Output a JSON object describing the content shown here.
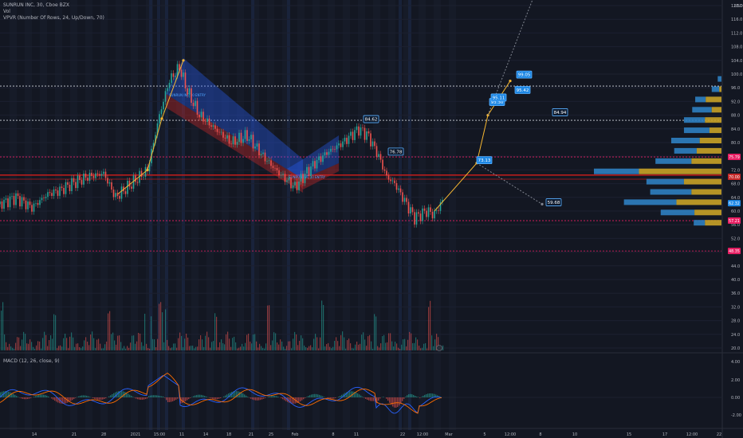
{
  "legend": {
    "symbol": "SUNRUN INC, 30, Cboe BZX",
    "volume": "Vol",
    "vpvr": "VPVR (Number Of Rows, 24, Up/Down, 70)",
    "macd": "MACD (12, 26, close, 9)"
  },
  "colors": {
    "background": "#131722",
    "up": "#26a69a",
    "down": "#ef5350",
    "arrow": "#f7b731",
    "channel_blue": "#2962ff",
    "channel_red": "#c62828",
    "vp_up": "#2f7fc1",
    "vp_down": "#c9a227",
    "magenta": "#e91e63",
    "macd_line": "#2962ff",
    "signal_line": "#ff6d00"
  },
  "chart_data": {
    "type": "candlestick",
    "price_axis": {
      "ticks": [
        "120.0",
        "116.0",
        "112.0",
        "108.0",
        "104.0",
        "100.0",
        "96.0",
        "92.0",
        "88.0",
        "84.0",
        "80.0",
        "76.0",
        "72.0",
        "68.0",
        "64.0",
        "60.0",
        "56.0",
        "52.0",
        "48.0",
        "44.0",
        "40.0",
        "36.0",
        "32.0",
        "28.0",
        "24.0",
        "20.0"
      ],
      "top_label": "USD",
      "range": [
        20,
        121
      ]
    },
    "macd_axis": {
      "ticks": [
        "4.00",
        "2.00",
        "0.00",
        "-2.00"
      ]
    },
    "x_labels": [
      "14",
      "21",
      "28",
      "2021",
      "15:00",
      "11",
      "14",
      "18",
      "21",
      "25",
      "Feb",
      "8",
      "11",
      "22",
      "12:00",
      "Mar",
      "5",
      "12:00",
      "8",
      "10",
      "15",
      "17",
      "12:00",
      "22"
    ],
    "price_labels": [
      {
        "text": "84.62",
        "price": 86.5
      },
      {
        "text": "76.78",
        "price": 77.0
      },
      {
        "text": "84.94",
        "price": 88.5
      },
      {
        "text": "59.68",
        "price": 62.2
      },
      {
        "text": "73.13",
        "price": 74.5
      },
      {
        "text": "93.30",
        "price": 91.5
      },
      {
        "text": "99.05",
        "price": 99.5
      },
      {
        "text": "95.42",
        "price": 95.0
      },
      {
        "text": "95.11",
        "price": 92.8
      }
    ],
    "axis_badges": [
      {
        "text": "75.79",
        "price": 75.8,
        "style": "magenta"
      },
      {
        "text": "70.00",
        "price": 70.0,
        "style": "red"
      },
      {
        "text": "57.21",
        "price": 57.2,
        "style": "magenta"
      },
      {
        "text": "48.35",
        "price": 48.35,
        "style": "magenta"
      },
      {
        "text": "62.32",
        "price": 62.3,
        "style": "blue"
      }
    ],
    "channel_labels": [
      "SUNRUN INC 30 ENTRY",
      "SUNRUN INC 30 ENTRY"
    ],
    "volume_profile": [
      {
        "price": 98,
        "up": 5,
        "down": 0
      },
      {
        "price": 95,
        "up": 10,
        "down": 3
      },
      {
        "price": 92,
        "up": 14,
        "down": 21
      },
      {
        "price": 89,
        "up": 26,
        "down": 13
      },
      {
        "price": 86,
        "up": 28,
        "down": 22
      },
      {
        "price": 83,
        "up": 34,
        "down": 16
      },
      {
        "price": 80,
        "up": 38,
        "down": 29
      },
      {
        "price": 77,
        "up": 30,
        "down": 33
      },
      {
        "price": 74,
        "up": 48,
        "down": 40
      },
      {
        "price": 71,
        "up": 60,
        "down": 110
      },
      {
        "price": 68,
        "up": 50,
        "down": 50
      },
      {
        "price": 65,
        "up": 55,
        "down": 40
      },
      {
        "price": 62,
        "up": 70,
        "down": 60
      },
      {
        "price": 59,
        "up": 45,
        "down": 36
      },
      {
        "price": 56,
        "up": 15,
        "down": 22
      }
    ]
  }
}
